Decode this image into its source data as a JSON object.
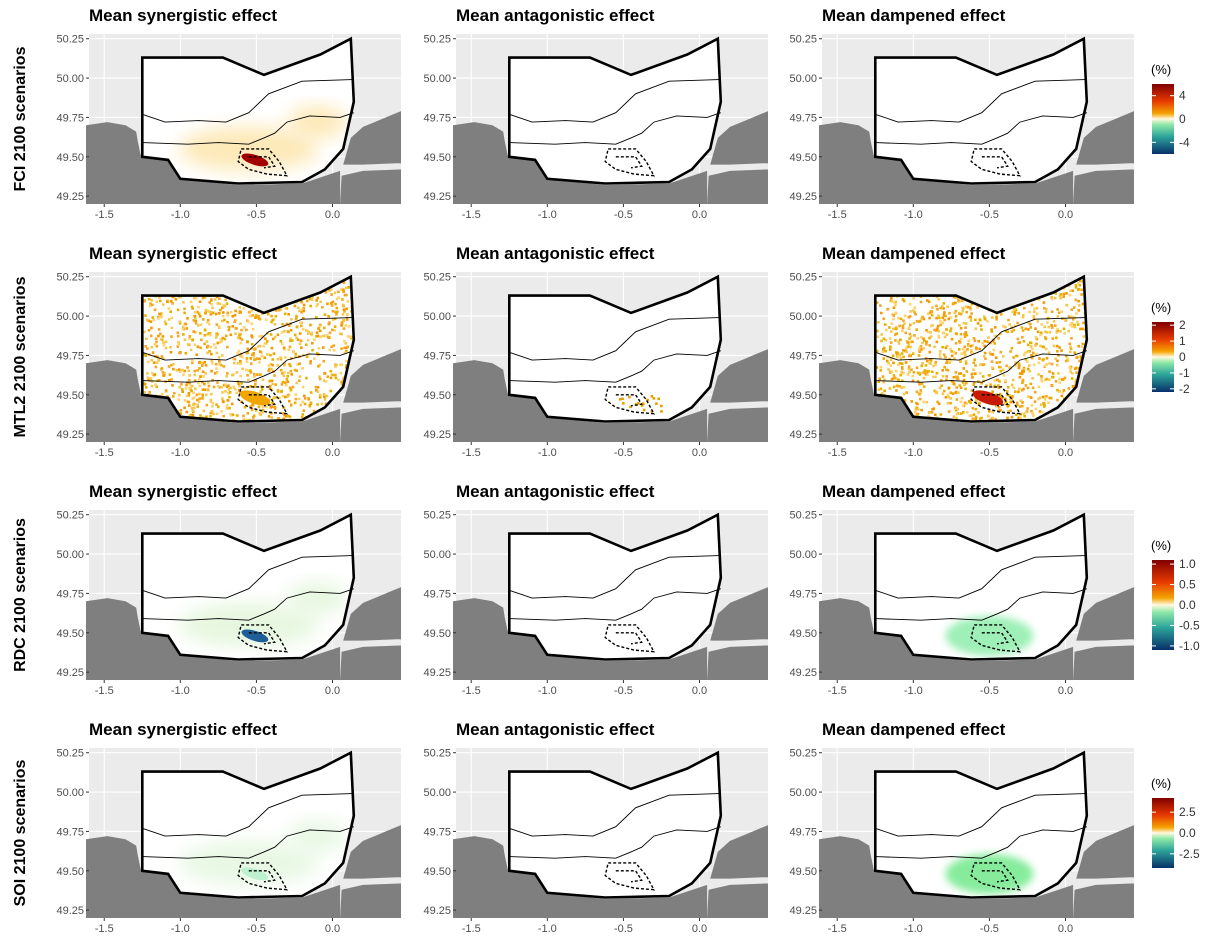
{
  "chart_data": {
    "type": "heatmap",
    "x_ticks": [
      "-1.5",
      "-1.0",
      "-0.5",
      "0.0"
    ],
    "y_ticks": [
      "50.25",
      "50.00",
      "49.75",
      "49.50",
      "49.25"
    ],
    "xlim": [
      -1.6,
      0.45
    ],
    "ylim": [
      49.2,
      50.28
    ],
    "grid": true,
    "legend_title": "(%)",
    "colors": {
      "panel_bg": "#ebebeb",
      "grid": "#ffffff",
      "land": "#7f7f7f",
      "low": "#08306b",
      "mid_low": "#2ca59a",
      "zero": "#fff8dc",
      "mid_high": "#f4a300",
      "high": "#7f0000"
    },
    "rows": [
      {
        "label": "FCI 2100 scenarios",
        "legend_ticks": [
          "4",
          "0",
          "-4"
        ],
        "legend_values": [
          4,
          0,
          -4
        ],
        "legend_range": [
          -6,
          6
        ],
        "panels": [
          {
            "title": "Mean synergistic effect",
            "pattern": "patch",
            "patch_color": "#fde9b8",
            "hotspot": "#a30000"
          },
          {
            "title": "Mean antagonistic effect",
            "pattern": "empty"
          },
          {
            "title": "Mean dampened effect",
            "pattern": "empty"
          }
        ]
      },
      {
        "label": "MTL2 2100 scenarios",
        "legend_ticks": [
          "2",
          "1",
          "0",
          "-1",
          "-2"
        ],
        "legend_values": [
          2,
          1,
          0,
          -1,
          -2
        ],
        "legend_range": [
          -2.2,
          2.2
        ],
        "panels": [
          {
            "title": "Mean synergistic effect",
            "pattern": "scatter",
            "hotspot": "#f0a500"
          },
          {
            "title": "Mean antagonistic effect",
            "pattern": "sparse",
            "hotspot": "#e8a000"
          },
          {
            "title": "Mean dampened effect",
            "pattern": "scatter",
            "hotspot": "#c81a00"
          }
        ]
      },
      {
        "label": "RDC 2100 scenarios",
        "legend_ticks": [
          "1.0",
          "0.5",
          "0.0",
          "-0.5",
          "-1.0"
        ],
        "legend_values": [
          1.0,
          0.5,
          0.0,
          -0.5,
          -1.0
        ],
        "legend_range": [
          -1.1,
          1.1
        ],
        "panels": [
          {
            "title": "Mean synergistic effect",
            "pattern": "patch",
            "patch_color": "#e6f7df",
            "hotspot": "#1f5f99"
          },
          {
            "title": "Mean antagonistic effect",
            "pattern": "empty"
          },
          {
            "title": "Mean dampened effect",
            "pattern": "halo",
            "patch_color": "#9ff0b8"
          }
        ]
      },
      {
        "label": "SOI 2100 scenarios",
        "legend_ticks": [
          "2.5",
          "0.0",
          "-2.5"
        ],
        "legend_values": [
          2.5,
          0.0,
          -2.5
        ],
        "legend_range": [
          -4.2,
          4.2
        ],
        "panels": [
          {
            "title": "Mean synergistic effect",
            "pattern": "patch",
            "patch_color": "#e8f8e4",
            "hotspot": "#bff0cf"
          },
          {
            "title": "Mean antagonistic effect",
            "pattern": "empty"
          },
          {
            "title": "Mean dampened effect",
            "pattern": "halo",
            "patch_color": "#86ec9c"
          }
        ]
      }
    ]
  }
}
